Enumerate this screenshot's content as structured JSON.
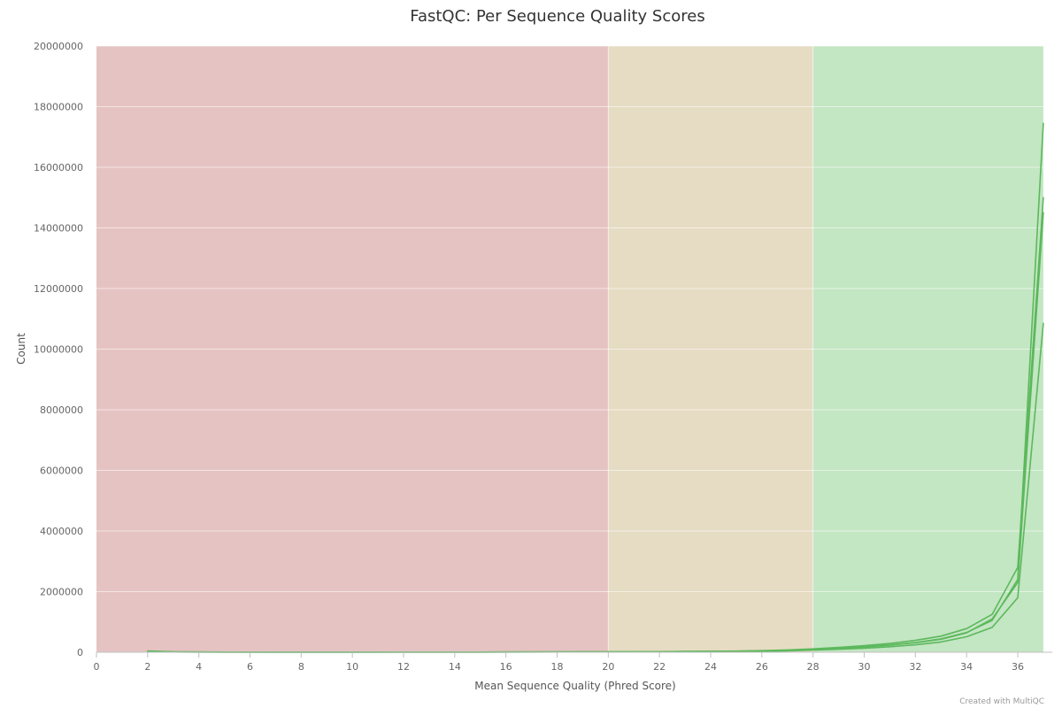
{
  "chart_data": {
    "type": "line",
    "title": "FastQC: Per Sequence Quality Scores",
    "xlabel": "Mean Sequence Quality (Phred Score)",
    "ylabel": "Count",
    "xlim": [
      0,
      37
    ],
    "ylim": [
      0,
      20000000
    ],
    "x_ticks": [
      "0",
      "2",
      "4",
      "6",
      "8",
      "10",
      "12",
      "14",
      "16",
      "18",
      "20",
      "22",
      "24",
      "26",
      "28",
      "30",
      "32",
      "34",
      "36"
    ],
    "y_ticks": [
      "0",
      "2000000",
      "4000000",
      "6000000",
      "8000000",
      "10000000",
      "12000000",
      "14000000",
      "16000000",
      "18000000",
      "20000000"
    ],
    "grid": true,
    "zones": [
      {
        "from": 0,
        "to": 20,
        "color": "#e6c3c3"
      },
      {
        "from": 20,
        "to": 28,
        "color": "#e6dcc3"
      },
      {
        "from": 28,
        "to": 37,
        "color": "#c3e6c3"
      }
    ],
    "line_color": "#5cb85c",
    "series": [
      {
        "x": [
          2,
          3,
          4,
          5,
          6,
          7,
          8,
          9,
          10,
          11,
          12,
          13,
          14,
          15,
          16,
          17,
          18,
          19,
          20,
          21,
          22,
          23,
          24,
          25,
          26,
          27,
          28,
          29,
          30,
          31,
          32,
          33,
          34,
          35,
          36,
          37
        ],
        "values": [
          40000,
          12000,
          8000,
          6000,
          5000,
          5000,
          5000,
          5000,
          5000,
          5000,
          6000,
          6000,
          7000,
          7000,
          8000,
          9000,
          10000,
          11000,
          13000,
          15000,
          18000,
          22000,
          26000,
          32000,
          45000,
          65000,
          95000,
          135000,
          180000,
          240000,
          320000,
          440000,
          650000,
          1050000,
          2400000,
          17450000
        ]
      },
      {
        "x": [
          2,
          3,
          4,
          5,
          6,
          7,
          8,
          9,
          10,
          11,
          12,
          13,
          14,
          15,
          16,
          17,
          18,
          19,
          20,
          21,
          22,
          23,
          24,
          25,
          26,
          27,
          28,
          29,
          30,
          31,
          32,
          33,
          34,
          35,
          36,
          37
        ],
        "values": [
          35000,
          11000,
          8000,
          6000,
          5000,
          5000,
          5000,
          5000,
          5000,
          5000,
          6000,
          6000,
          7000,
          7000,
          8000,
          9000,
          10000,
          11000,
          14000,
          16000,
          20000,
          25000,
          30000,
          38000,
          52000,
          75000,
          110000,
          160000,
          215000,
          290000,
          390000,
          530000,
          780000,
          1250000,
          2800000,
          15000000
        ]
      },
      {
        "x": [
          2,
          3,
          4,
          5,
          6,
          7,
          8,
          9,
          10,
          11,
          12,
          13,
          14,
          15,
          16,
          17,
          18,
          19,
          20,
          21,
          22,
          23,
          24,
          25,
          26,
          27,
          28,
          29,
          30,
          31,
          32,
          33,
          34,
          35,
          36,
          37
        ],
        "values": [
          30000,
          10000,
          7000,
          5000,
          5000,
          4000,
          4000,
          4000,
          4000,
          5000,
          5000,
          5000,
          6000,
          6000,
          7000,
          8000,
          9000,
          10000,
          12000,
          14000,
          17000,
          21000,
          25000,
          31000,
          43000,
          62000,
          90000,
          130000,
          175000,
          235000,
          315000,
          430000,
          640000,
          1100000,
          2300000,
          14500000
        ]
      },
      {
        "x": [
          2,
          3,
          4,
          5,
          6,
          7,
          8,
          9,
          10,
          11,
          12,
          13,
          14,
          15,
          16,
          17,
          18,
          19,
          20,
          21,
          22,
          23,
          24,
          25,
          26,
          27,
          28,
          29,
          30,
          31,
          32,
          33,
          34,
          35,
          36,
          37
        ],
        "values": [
          25000,
          8000,
          6000,
          5000,
          4000,
          4000,
          4000,
          4000,
          4000,
          4000,
          5000,
          5000,
          5000,
          6000,
          6000,
          7000,
          8000,
          9000,
          10000,
          12000,
          14000,
          17000,
          20000,
          24000,
          33000,
          48000,
          70000,
          100000,
          135000,
          180000,
          245000,
          340000,
          510000,
          820000,
          1800000,
          10850000
        ]
      }
    ]
  },
  "credit": "Created with MultiQC"
}
